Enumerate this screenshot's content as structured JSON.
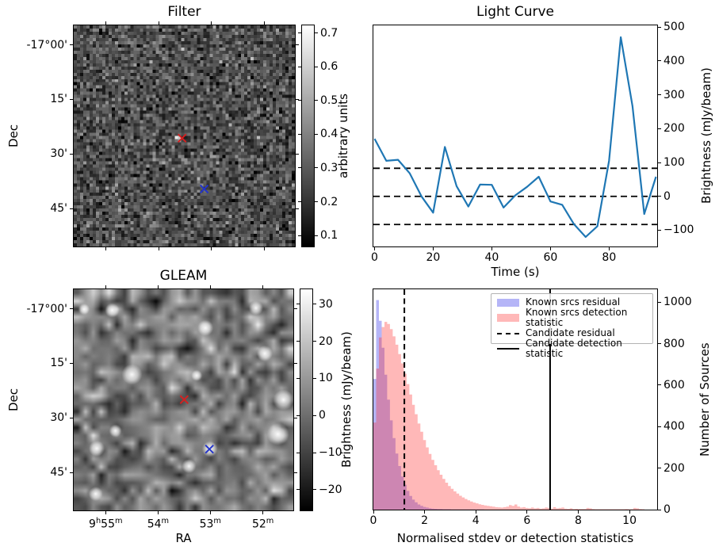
{
  "figure": {
    "background": "#ffffff"
  },
  "chart_data": [
    {
      "type": "heatmap",
      "title": "Filter",
      "ylabel": "Dec",
      "ytick_labels": [
        "-17°00'",
        "15'",
        "30'",
        "45'"
      ],
      "ytick_rel": [
        0.0915,
        0.336,
        0.581,
        0.826
      ],
      "xtick_rel": [
        0.148,
        0.385,
        0.621,
        0.859
      ],
      "noise": {
        "grid": 70,
        "mean": 0.27,
        "std": 0.085
      },
      "markers": [
        {
          "name": "candidate-cross",
          "color": "#d62020",
          "x": 0.49,
          "y": 0.51
        },
        {
          "name": "reference-cross",
          "color": "#2233cc",
          "x": 0.59,
          "y": 0.74
        }
      ],
      "colorbar": {
        "label": "arbitrary units",
        "vmin": 0.065,
        "vmax": 0.725,
        "ticks": [
          0.7,
          0.6,
          0.5,
          0.4,
          0.3,
          0.2,
          0.1
        ],
        "tick_labels": [
          "0.7",
          "0.6",
          "0.5",
          "0.4",
          "0.3",
          "0.2",
          "0.1"
        ]
      }
    },
    {
      "type": "line",
      "title": "Light Curve",
      "xlabel": "Time (s)",
      "ylabel": "Brightness (mJy/beam)",
      "line_color": "#1f77b4",
      "x": [
        0,
        4,
        8,
        12,
        16,
        20,
        24,
        28,
        32,
        36,
        40,
        44,
        48,
        52,
        56,
        60,
        64,
        68,
        72,
        76,
        80,
        84,
        88,
        92,
        96
      ],
      "y": [
        170,
        105,
        108,
        68,
        0,
        -48,
        146,
        30,
        -30,
        35,
        34,
        -33,
        3,
        28,
        58,
        -15,
        -25,
        -82,
        -120,
        -88,
        105,
        470,
        266,
        -52,
        58
      ],
      "hlines": [
        83,
        0,
        -83
      ],
      "hline_style": "dashed",
      "xlim": [
        -0.4,
        96.4
      ],
      "ylim": [
        -148,
        505
      ],
      "xticks": [
        0,
        20,
        40,
        60,
        80
      ],
      "xtick_labels": [
        "0",
        "20",
        "40",
        "60",
        "80"
      ],
      "yticks": [
        500,
        400,
        300,
        200,
        100,
        0,
        -100
      ],
      "ytick_labels": [
        "500",
        "400",
        "300",
        "200",
        "100",
        "0",
        "−100"
      ]
    },
    {
      "type": "heatmap",
      "title": "GLEAM",
      "xlabel": "RA",
      "ylabel": "Dec",
      "xtick_labels": [
        "9^h55^m",
        "54^m",
        "53^m",
        "52^m"
      ],
      "xtick_rel": [
        0.148,
        0.385,
        0.621,
        0.859
      ],
      "ytick_labels": [
        "-17°00'",
        "15'",
        "30'",
        "45'"
      ],
      "ytick_rel": [
        0.0915,
        0.336,
        0.581,
        0.826
      ],
      "noise": {
        "grid": 28,
        "mean": 2,
        "std": 9.5
      },
      "bright_sources": [
        {
          "x": 0.047,
          "y": 0.09,
          "r": 7
        },
        {
          "x": 0.175,
          "y": 0.095,
          "r": 9
        },
        {
          "x": 0.6,
          "y": 0.175,
          "r": 10
        },
        {
          "x": 0.83,
          "y": 0.085,
          "r": 9
        },
        {
          "x": 0.265,
          "y": 0.385,
          "r": 13
        },
        {
          "x": 0.56,
          "y": 0.39,
          "r": 7
        },
        {
          "x": 0.87,
          "y": 0.29,
          "r": 10
        },
        {
          "x": 0.955,
          "y": 0.5,
          "r": 13
        },
        {
          "x": 0.93,
          "y": 0.655,
          "r": 14
        },
        {
          "x": 0.105,
          "y": 0.72,
          "r": 10
        },
        {
          "x": 0.62,
          "y": 0.723,
          "r": 10
        },
        {
          "x": 0.525,
          "y": 0.8,
          "r": 9
        },
        {
          "x": 0.19,
          "y": 0.64,
          "r": 8
        },
        {
          "x": 0.1,
          "y": 0.925,
          "r": 9
        }
      ],
      "markers": [
        {
          "name": "candidate-cross",
          "color": "#d62020",
          "x": 0.503,
          "y": 0.499
        },
        {
          "name": "reference-cross",
          "color": "#2233cc",
          "x": 0.618,
          "y": 0.723
        }
      ],
      "colorbar": {
        "label": "Brightness (mJy/beam)",
        "vmin": -25.8,
        "vmax": 34.2,
        "ticks": [
          30,
          20,
          10,
          0,
          -10,
          -20
        ],
        "tick_labels": [
          "30",
          "20",
          "10",
          "0",
          "−10",
          "−20"
        ]
      }
    },
    {
      "type": "histogram",
      "xlabel": "Normalised stdev or detection statistics",
      "ylabel": "Number of Sources",
      "bin_width": 0.108,
      "xlim": [
        0,
        11.08
      ],
      "ylim": [
        0,
        1062
      ],
      "xticks": [
        0,
        2,
        4,
        6,
        8,
        10
      ],
      "xtick_labels": [
        "0",
        "2",
        "4",
        "6",
        "8",
        "10"
      ],
      "yticks": [
        0,
        200,
        400,
        600,
        800,
        1000
      ],
      "ytick_labels": [
        "0",
        "200",
        "400",
        "600",
        "800",
        "1000"
      ],
      "series": [
        {
          "name": "Known srcs residual",
          "color": "rgba(30,30,230,0.33)",
          "values": [
            630,
            1010,
            910,
            780,
            650,
            530,
            430,
            345,
            270,
            210,
            160,
            120,
            90,
            66,
            48,
            35,
            25,
            18,
            13,
            10,
            7,
            5,
            4,
            3,
            3,
            2,
            2,
            2,
            1,
            1,
            1,
            1,
            1,
            1,
            1,
            1,
            1,
            1,
            1,
            1
          ]
        },
        {
          "name": "Known srcs detection statistic",
          "color": "rgba(255,40,40,0.33)",
          "values": [
            420,
            680,
            830,
            880,
            905,
            895,
            870,
            835,
            795,
            750,
            705,
            655,
            605,
            555,
            505,
            460,
            415,
            375,
            335,
            300,
            268,
            240,
            214,
            190,
            168,
            148,
            130,
            114,
            100,
            88,
            77,
            67,
            59,
            51,
            45,
            39,
            34,
            30,
            26,
            23,
            20,
            18,
            16,
            14,
            12,
            11,
            10,
            12,
            14,
            22,
            18,
            25,
            15,
            10,
            12,
            8,
            7,
            10,
            6,
            8,
            5,
            6,
            10,
            8,
            5,
            12,
            6,
            8,
            10,
            5,
            4,
            6,
            3,
            4,
            3,
            3,
            3,
            8,
            6,
            3,
            2,
            2,
            2,
            2,
            2,
            2,
            2,
            2,
            2,
            2,
            2,
            3,
            2,
            2,
            8,
            6,
            3,
            2
          ]
        }
      ],
      "vlines": [
        {
          "name": "Candidate residual",
          "style": "dashed",
          "x": 1.21
        },
        {
          "name": "Candidate detection statistic",
          "style": "solid",
          "x": 6.9
        }
      ],
      "legend": {
        "items": [
          "Known srcs residual",
          "Known srcs detection statistic",
          "Candidate residual",
          "Candidate detection statistic"
        ]
      }
    }
  ]
}
